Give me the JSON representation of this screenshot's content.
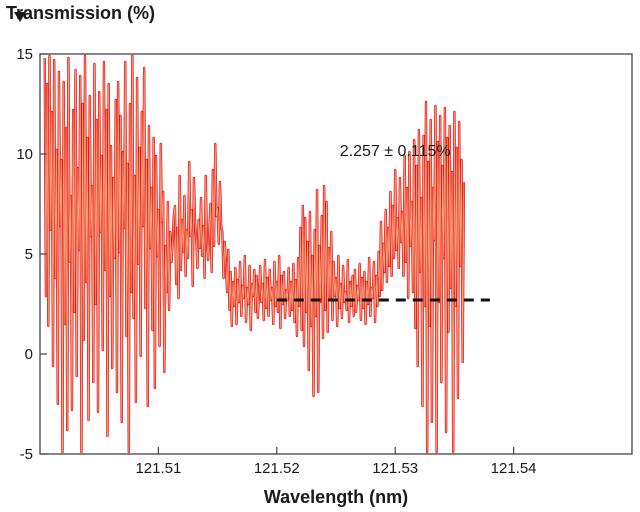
{
  "chart_data": {
    "type": "line",
    "title": "",
    "ylabel": "Transmission (%)",
    "xlabel": "Wavelength (nm)",
    "xlim": [
      121.5,
      121.55
    ],
    "ylim": [
      -5,
      15
    ],
    "x_ticks": [
      121.51,
      121.52,
      121.53,
      121.54
    ],
    "x_tick_labels": [
      "121.51",
      "121.52",
      "121.53",
      "121.54"
    ],
    "y_ticks": [
      -5,
      0,
      5,
      10,
      15
    ],
    "y_tick_labels": [
      "-5",
      "0",
      "5",
      "10",
      "15"
    ],
    "grid": false,
    "legend": "none",
    "colors": {
      "series_dark": "#e8161b",
      "series_light": "#f6a07a",
      "mean_line": "#111111",
      "frame": "#444444"
    },
    "annotation": {
      "text": "2.257 ± 0.115%",
      "x": 121.53,
      "y": 9.9
    },
    "mean_line": {
      "y": 2.7,
      "x_start": 121.52,
      "x_end": 121.538
    },
    "series": [
      {
        "x_start": 121.5004,
        "x_step": 0.0001,
        "values": [
          14.8,
          2.9,
          13.5,
          1.4,
          14.9,
          6.2,
          12.1,
          -0.6,
          14.7,
          3.8,
          10.2,
          -2.5,
          14.1,
          6.4,
          9.7,
          -4.9,
          13.6,
          1.5,
          11.3,
          -3.8,
          14.8,
          4.6,
          7.9,
          -2.8,
          12.2,
          2.1,
          14.2,
          -1.1,
          9.3,
          5.2,
          13.9,
          -4.9,
          12.5,
          0.7,
          14.9,
          3.6,
          10.8,
          -3.3,
          12.9,
          5.9,
          8.4,
          -1.4,
          14.5,
          2.5,
          11.7,
          -2.9,
          13.1,
          6.1,
          9.9,
          0.2,
          14.6,
          4.2,
          12.2,
          -4.1,
          13.5,
          2.9,
          10.4,
          -0.7,
          8.8,
          4.8,
          12.7,
          -1.9,
          13.6,
          5.1,
          11.9,
          -3.4,
          10.1,
          6.3,
          14.6,
          0.9,
          9.5,
          -4.9,
          12.5,
          3.1,
          14.9,
          1.8,
          8.9,
          -2.4,
          13.8,
          4.5,
          10.3,
          -0.1,
          12.1,
          6.4,
          14.3,
          2.3,
          9.7,
          -2.6,
          11.4,
          5.3,
          8.3,
          1.2,
          10.8,
          -1.7,
          9.9,
          4.9,
          7.2,
          0.4,
          10.5,
          6.6,
          8.1,
          -0.9,
          5.4,
          3.1,
          7.6,
          2.2,
          6.1,
          4.6,
          5.5,
          6.9,
          7.4,
          3.5,
          6.3,
          2.8,
          8.9,
          4.2,
          6.7,
          5.1,
          7.9,
          3.9,
          6.2,
          4.8,
          9.6,
          5.9,
          7.2,
          3.4,
          8.8,
          6.5,
          5.7,
          4.3,
          6.7,
          5.3,
          7.8,
          4.9,
          6.4,
          3.8,
          8.9,
          5.6,
          4.7,
          6.1,
          7.5,
          4.1,
          9.2,
          5.4,
          10.5,
          6.9,
          7.3,
          5.5,
          8.6,
          6.4,
          6.1,
          3.8,
          5.6,
          4.5,
          3.1,
          5.2,
          2.2,
          4.1,
          1.4,
          3.6,
          2.4,
          4.3,
          1.5,
          3.7,
          2.6,
          4.6,
          1.9,
          3.4,
          2.8,
          4.9,
          1.6,
          3.3,
          2.5,
          4.4,
          1.2,
          3.5,
          2.9,
          4.2,
          2.1,
          3.9,
          1.8,
          3.1,
          4.4,
          2.6,
          3.5,
          1.7,
          4.7,
          2.3,
          3.8,
          1.9,
          4.2,
          2.7,
          3.3,
          1.5,
          4.6,
          2.4,
          3.6,
          2.1,
          4.9,
          1.3,
          3.9,
          2.5,
          4.1,
          1.8,
          3.2,
          2.7,
          4.3,
          1.9,
          3.6,
          2.2,
          4.5,
          1.6,
          3.7,
          0.9,
          4.8,
          2.4,
          6.3,
          1.2,
          7.4,
          0.4,
          6.8,
          2.1,
          5.6,
          -0.8,
          7.1,
          1.4,
          4.9,
          -2.1,
          6.2,
          1.9,
          8.2,
          -1.9,
          5.4,
          2.6,
          6.9,
          0.8,
          8.4,
          2.2,
          7.6,
          1.1,
          5.3,
          2.8,
          6.1,
          1.7,
          4.6,
          2.9,
          3.8,
          1.4,
          4.9,
          2.3,
          3.5,
          1.8,
          4.4,
          2.6,
          3.1,
          2.2,
          4.7,
          1.6,
          3.6,
          2.4,
          3.9,
          1.9,
          4.2,
          2.1,
          3.4,
          2.7,
          4.5,
          1.7,
          3.8,
          2.3,
          4.1,
          1.5,
          3.6,
          2.5,
          4.8,
          1.9,
          3.3,
          2.8,
          4.6,
          1.6,
          3.9,
          2.4,
          5.1,
          2.9,
          6.6,
          3.2,
          5.5,
          4.1,
          7.2,
          3.6,
          6.3,
          4.4,
          8.1,
          3.9,
          7.4,
          4.8,
          9.2,
          5.2,
          6.8,
          4.3,
          8.8,
          5.6,
          7.1,
          3.9,
          9.9,
          4.6,
          8.3,
          2.8,
          10.1,
          5.4,
          7.6,
          3.1,
          10.7,
          1.3,
          9.4,
          -0.6,
          11.2,
          4.1,
          7.8,
          -2.6,
          10.9,
          2.4,
          12.6,
          -4.9,
          9.6,
          1.4,
          11.7,
          -3.4,
          8.3,
          5.7,
          12.4,
          -4.9,
          10.6,
          2.6,
          11.9,
          -1.4,
          9.4,
          4.8,
          12.3,
          -3.9,
          10.8,
          1.1,
          11.4,
          3.3,
          9.1,
          -4.9,
          12.1,
          2.4,
          10.3,
          -2.2,
          11.6,
          4.4,
          9.7,
          -0.4,
          8.6
        ]
      }
    ]
  }
}
